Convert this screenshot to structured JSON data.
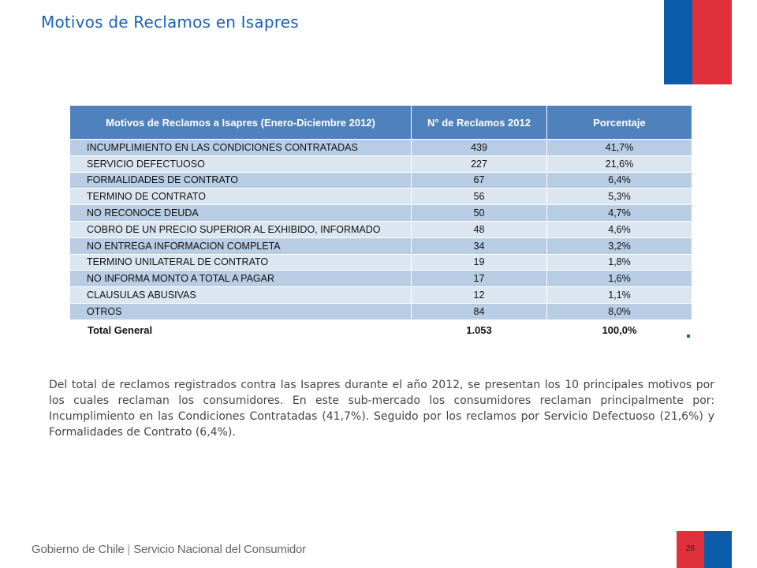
{
  "title": "Motivos de Reclamos en Isapres",
  "table": {
    "headers": [
      "Motivos de Reclamos a Isapres (Enero-Diciembre 2012)",
      "N° de Reclamos 2012",
      "Porcentaje"
    ],
    "rows": [
      {
        "motivo": "INCUMPLIMIENTO EN LAS CONDICIONES CONTRATADAS",
        "reclamos": "439",
        "porcentaje": "41,7%"
      },
      {
        "motivo": "SERVICIO DEFECTUOSO",
        "reclamos": "227",
        "porcentaje": "21,6%"
      },
      {
        "motivo": "FORMALIDADES DE CONTRATO",
        "reclamos": "67",
        "porcentaje": "6,4%"
      },
      {
        "motivo": "TERMINO DE CONTRATO",
        "reclamos": "56",
        "porcentaje": "5,3%"
      },
      {
        "motivo": "NO RECONOCE DEUDA",
        "reclamos": "50",
        "porcentaje": "4,7%"
      },
      {
        "motivo": "COBRO DE UN PRECIO SUPERIOR AL EXHIBIDO, INFORMADO",
        "reclamos": "48",
        "porcentaje": "4,6%"
      },
      {
        "motivo": "NO ENTREGA INFORMACION COMPLETA",
        "reclamos": "34",
        "porcentaje": "3,2%"
      },
      {
        "motivo": "TERMINO UNILATERAL DE CONTRATO",
        "reclamos": "19",
        "porcentaje": "1,8%"
      },
      {
        "motivo": "NO INFORMA MONTO A TOTAL A PAGAR",
        "reclamos": "17",
        "porcentaje": "1,6%"
      },
      {
        "motivo": "CLAUSULAS ABUSIVAS",
        "reclamos": "12",
        "porcentaje": "1,1%"
      },
      {
        "motivo": "OTROS",
        "reclamos": "84",
        "porcentaje": "8,0%"
      }
    ],
    "total": {
      "motivo": "Total General",
      "reclamos": "1.053",
      "porcentaje": "100,0%"
    }
  },
  "body_text": "Del total de reclamos registrados  contra las Isapres durante el año 2012, se presentan los 10 principales motivos por los cuales reclaman los consumidores. En este sub-mercado los consumidores reclaman principalmente por: Incumplimiento en las Condiciones Contratadas (41,7%). Seguido por los reclamos por Servicio Defectuoso  (21,6%) y Formalidades de Contrato (6,4%).",
  "footer": {
    "brand_left": "Gobierno de Chile",
    "separator": "|",
    "brand_right": "Servicio Nacional del Consumidor"
  },
  "page_number": "26",
  "colors": {
    "title_blue": "#1b63b4",
    "header_blue": "#4f81bd",
    "row_dark": "#b8cce4",
    "row_light": "#dce6f1",
    "flag_blue": "#0b5cab",
    "flag_red": "#e0303b"
  }
}
